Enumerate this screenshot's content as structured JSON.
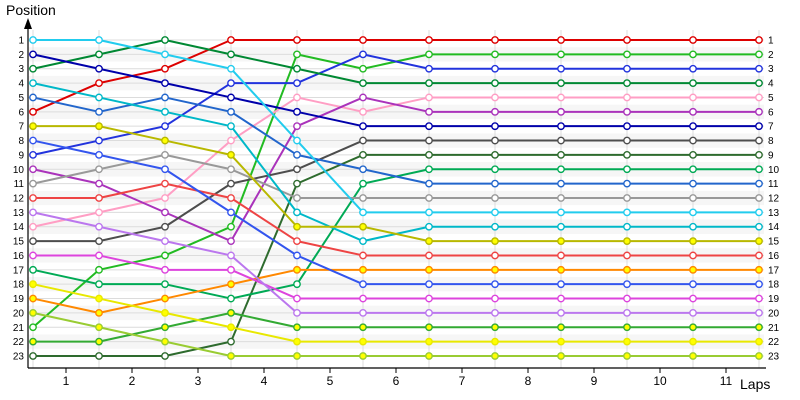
{
  "chart_data": {
    "type": "line",
    "title": "",
    "ylabel": "Position",
    "xlabel": "Laps",
    "legend": "none",
    "grid": "on",
    "y_axis": {
      "min": 1,
      "max": 23,
      "inverted": true,
      "labels": [
        "1",
        "2",
        "3",
        "4",
        "5",
        "6",
        "7",
        "8",
        "9",
        "10",
        "11",
        "12",
        "13",
        "14",
        "15",
        "16",
        "17",
        "18",
        "19",
        "20",
        "21",
        "22",
        "23"
      ]
    },
    "x_axis": {
      "tick_labels": [
        "1",
        "2",
        "3",
        "4",
        "5",
        "6",
        "7",
        "8",
        "9",
        "10",
        "11"
      ],
      "note": "markers at race start plus after each lap"
    },
    "laps": [
      0,
      1,
      2,
      3,
      4,
      5,
      6,
      7,
      8,
      9,
      10,
      11
    ],
    "series": [
      {
        "name": "1",
        "color": "#dd0000",
        "marker_fill": "#ffffff",
        "positions": [
          6,
          4,
          3,
          1,
          1,
          1,
          1,
          1,
          1,
          1,
          1,
          1
        ]
      },
      {
        "name": "2",
        "color": "#22bb22",
        "marker_fill": "#ffffff",
        "positions": [
          21,
          17,
          16,
          14,
          2,
          3,
          2,
          2,
          2,
          2,
          2,
          2
        ]
      },
      {
        "name": "3",
        "color": "#2233dd",
        "marker_fill": "#ffffff",
        "positions": [
          9,
          8,
          7,
          4,
          4,
          2,
          3,
          3,
          3,
          3,
          3,
          3
        ]
      },
      {
        "name": "4",
        "color": "#008833",
        "marker_fill": "#ffffff",
        "positions": [
          3,
          2,
          1,
          2,
          3,
          4,
          4,
          4,
          4,
          4,
          4,
          4
        ]
      },
      {
        "name": "5",
        "color": "#ff9ec4",
        "marker_fill": "#ffffff",
        "positions": [
          14,
          13,
          12,
          8,
          5,
          6,
          5,
          5,
          5,
          5,
          5,
          5
        ]
      },
      {
        "name": "6",
        "color": "#aa33bb",
        "marker_fill": "#ffffff",
        "positions": [
          10,
          11,
          13,
          15,
          7,
          5,
          6,
          6,
          6,
          6,
          6,
          6
        ]
      },
      {
        "name": "7",
        "color": "#0000aa",
        "marker_fill": "#ffffff",
        "positions": [
          2,
          3,
          4,
          5,
          6,
          7,
          7,
          7,
          7,
          7,
          7,
          7
        ]
      },
      {
        "name": "8",
        "color": "#4d4d4d",
        "marker_fill": "#ffffff",
        "positions": [
          15,
          15,
          14,
          11,
          10,
          8,
          8,
          8,
          8,
          8,
          8,
          8
        ]
      },
      {
        "name": "9",
        "color": "#2e6b2e",
        "marker_fill": "#ffffff",
        "positions": [
          23,
          23,
          23,
          22,
          11,
          9,
          9,
          9,
          9,
          9,
          9,
          9
        ]
      },
      {
        "name": "10",
        "color": "#00aa55",
        "marker_fill": "#ffffff",
        "positions": [
          17,
          18,
          18,
          19,
          18,
          11,
          10,
          10,
          10,
          10,
          10,
          10
        ]
      },
      {
        "name": "11",
        "color": "#2266cc",
        "marker_fill": "#ffffff",
        "positions": [
          5,
          6,
          5,
          6,
          9,
          10,
          11,
          11,
          11,
          11,
          11,
          11
        ]
      },
      {
        "name": "12",
        "color": "#999999",
        "marker_fill": "#ffffff",
        "positions": [
          11,
          10,
          9,
          10,
          12,
          12,
          12,
          12,
          12,
          12,
          12,
          12
        ]
      },
      {
        "name": "13",
        "color": "#22ccee",
        "marker_fill": "#ffffff",
        "positions": [
          1,
          1,
          2,
          3,
          8,
          13,
          13,
          13,
          13,
          13,
          13,
          13
        ]
      },
      {
        "name": "14",
        "color": "#00b8c8",
        "marker_fill": "#ffffff",
        "positions": [
          4,
          5,
          6,
          7,
          13,
          15,
          14,
          14,
          14,
          14,
          14,
          14
        ]
      },
      {
        "name": "15",
        "color": "#b8b800",
        "marker_fill": "#ffff00",
        "positions": [
          7,
          7,
          8,
          9,
          14,
          14,
          15,
          15,
          15,
          15,
          15,
          15
        ]
      },
      {
        "name": "16",
        "color": "#ee4444",
        "marker_fill": "#ffffff",
        "positions": [
          12,
          12,
          11,
          12,
          15,
          16,
          16,
          16,
          16,
          16,
          16,
          16
        ]
      },
      {
        "name": "17",
        "color": "#ff8800",
        "marker_fill": "#ffff00",
        "positions": [
          19,
          20,
          19,
          18,
          17,
          17,
          17,
          17,
          17,
          17,
          17,
          17
        ]
      },
      {
        "name": "18",
        "color": "#3355ee",
        "marker_fill": "#ffffff",
        "positions": [
          8,
          9,
          10,
          13,
          16,
          18,
          18,
          18,
          18,
          18,
          18,
          18
        ]
      },
      {
        "name": "19",
        "color": "#dd44dd",
        "marker_fill": "#ffffff",
        "positions": [
          16,
          16,
          17,
          17,
          19,
          19,
          19,
          19,
          19,
          19,
          19,
          19
        ]
      },
      {
        "name": "20",
        "color": "#bb77ee",
        "marker_fill": "#ffffff",
        "positions": [
          13,
          14,
          15,
          16,
          20,
          20,
          20,
          20,
          20,
          20,
          20,
          20
        ]
      },
      {
        "name": "21",
        "color": "#33aa33",
        "marker_fill": "#ffff00",
        "positions": [
          22,
          22,
          21,
          20,
          21,
          21,
          21,
          21,
          21,
          21,
          21,
          21
        ]
      },
      {
        "name": "22",
        "color": "#e8e800",
        "marker_fill": "#ffff00",
        "positions": [
          18,
          19,
          20,
          21,
          22,
          22,
          22,
          22,
          22,
          22,
          22,
          22
        ]
      },
      {
        "name": "23",
        "color": "#99cc33",
        "marker_fill": "#ffff00",
        "positions": [
          20,
          21,
          22,
          23,
          23,
          23,
          23,
          23,
          23,
          23,
          23,
          23
        ]
      }
    ]
  }
}
